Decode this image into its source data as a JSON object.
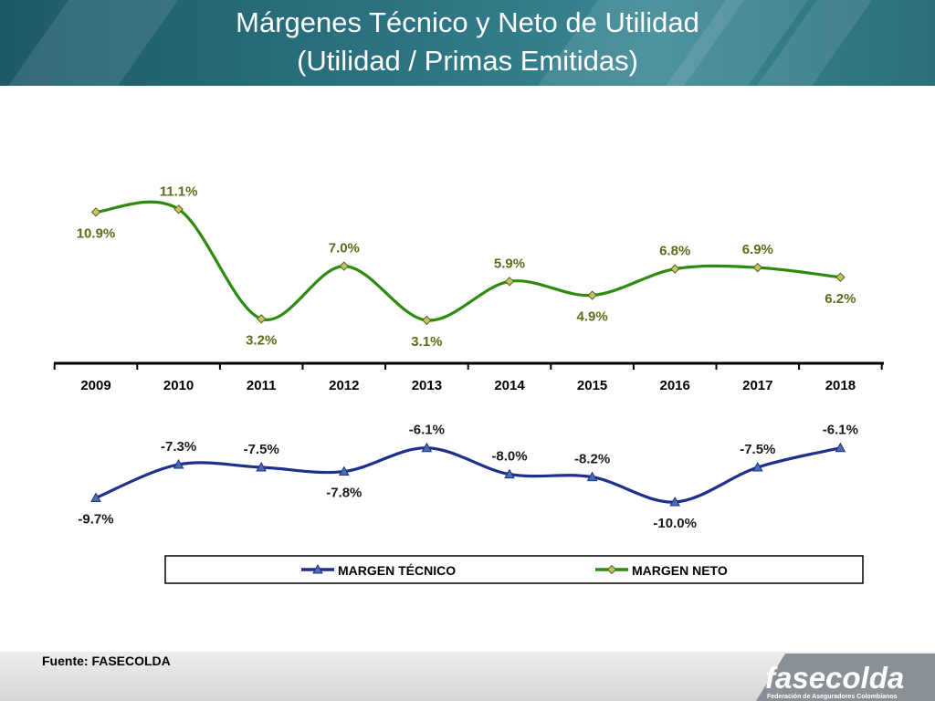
{
  "header": {
    "title_line1": "Márgenes Técnico y Neto de Utilidad",
    "title_line2": "(Utilidad / Primas Emitidas)"
  },
  "chart_data": {
    "type": "line",
    "categories": [
      "2009",
      "2010",
      "2011",
      "2012",
      "2013",
      "2014",
      "2015",
      "2016",
      "2017",
      "2018"
    ],
    "series": [
      {
        "name": "MARGEN TÉCNICO",
        "values": [
          -9.7,
          -7.3,
          -7.5,
          -7.8,
          -6.1,
          -8.0,
          -8.2,
          -10.0,
          -7.5,
          -6.1
        ],
        "labels": [
          "-9.7%",
          "-7.3%",
          "-7.5%",
          "-7.8%",
          "-6.1%",
          "-8.0%",
          "-8.2%",
          "-10.0%",
          "-7.5%",
          "-6.1%"
        ],
        "color": "#1f2f8a",
        "marker": "triangle"
      },
      {
        "name": "MARGEN NETO",
        "values": [
          10.9,
          11.1,
          3.2,
          7.0,
          3.1,
          5.9,
          4.9,
          6.8,
          6.9,
          6.2
        ],
        "labels": [
          "10.9%",
          "11.1%",
          "3.2%",
          "7.0%",
          "3.1%",
          "5.9%",
          "4.9%",
          "6.8%",
          "6.9%",
          "6.2%"
        ],
        "color": "#2e8b10",
        "marker": "diamond"
      }
    ],
    "label_color_neto": "#5a6e1a",
    "ylim": [
      -11,
      12
    ],
    "legend": "bottom",
    "axis_at": 0
  },
  "footer": {
    "source": "Fuente: FASECOLDA",
    "logo_name": "fasecolda",
    "logo_tagline": "Federación de Aseguradores Colombianos"
  }
}
